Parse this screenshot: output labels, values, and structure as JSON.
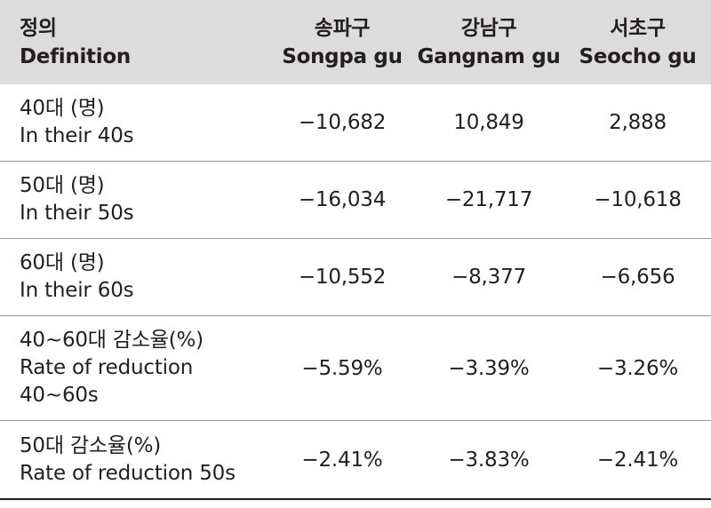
{
  "header": {
    "definition_ko": "정의",
    "definition_en": "Definition",
    "columns": [
      {
        "ko": "송파구",
        "en": "Songpa gu"
      },
      {
        "ko": "강남구",
        "en": "Gangnam gu"
      },
      {
        "ko": "서초구",
        "en": "Seocho gu"
      }
    ]
  },
  "rows": [
    {
      "lines": [
        "40대 (명)",
        "In their 40s"
      ],
      "values": [
        "−10,682",
        "10,849",
        "2,888"
      ]
    },
    {
      "lines": [
        "50대 (명)",
        "In their 50s"
      ],
      "values": [
        "−16,034",
        "−21,717",
        "−10,618"
      ]
    },
    {
      "lines": [
        "60대 (명)",
        "In their 60s"
      ],
      "values": [
        "−10,552",
        "−8,377",
        "−6,656"
      ]
    },
    {
      "lines": [
        "40~60대 감소율(%)",
        "Rate of reduction",
        "40~60s"
      ],
      "values": [
        "−5.59%",
        "−3.39%",
        "−3.26%"
      ]
    },
    {
      "lines": [
        "50대 감소율(%)",
        "Rate of reduction 50s"
      ],
      "values": [
        "−2.41%",
        "−3.83%",
        "−2.41%"
      ]
    }
  ]
}
